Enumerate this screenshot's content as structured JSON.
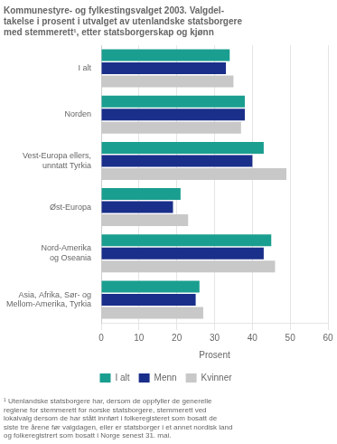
{
  "chart_data": {
    "type": "bar",
    "orientation": "horizontal",
    "title": "Kommunestyre- og fylkestingsvalget 2003. Valgdel-\ntakelse i prosent i utvalget av utenlandske statsborgere\nmed stemmerett¹, etter statsborgerskap og kjønn",
    "categories": [
      "I alt",
      "Norden",
      "Vest-Europa ellers,\nunntatt Tyrkia",
      "Øst-Europa",
      "Nord-Amerika\nog Oseania",
      "Asia, Afrika, Sør- og\nMellom-Amerika, Tyrkia"
    ],
    "series": [
      {
        "name": "I alt",
        "color": "#1a9e8f",
        "values": [
          34,
          38,
          43,
          21,
          45,
          26
        ]
      },
      {
        "name": "Menn",
        "color": "#1a2f8a",
        "values": [
          33,
          38,
          40,
          19,
          43,
          25
        ]
      },
      {
        "name": "Kvinner",
        "color": "#c8c8c8",
        "values": [
          35,
          37,
          49,
          23,
          46,
          27
        ]
      }
    ],
    "xlabel": "Prosent",
    "xlim": [
      0,
      60
    ],
    "xticks": [
      0,
      10,
      20,
      30,
      40,
      50,
      60
    ],
    "grid": true,
    "legend": "bottom",
    "footnote": "¹ Utenlandske statsborgere har, dersom de oppfyller de generelle\nreglene for stemmerett for norske statsborgere, stemmerett ved\nlokalvalg dersom de har stått innført i folkeregisteret som bosatt de\nsiste tre årene før valgdagen, eller er statsborger i et annet nordisk land\nog folkeregistrert som bosatt i Norge senest 31. mai."
  }
}
